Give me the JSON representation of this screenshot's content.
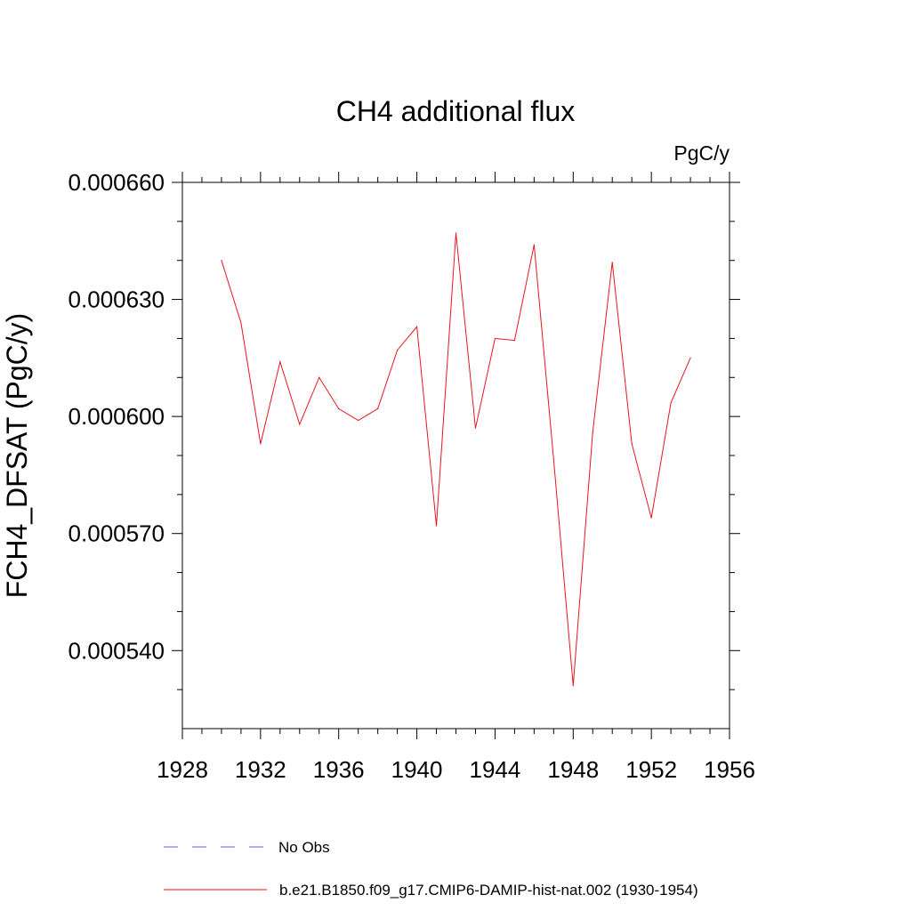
{
  "chart_data": {
    "type": "line",
    "title": "CH4 additional flux",
    "units_label": "PgC/y",
    "ylabel": "FCH4_DFSAT  (PgC/y)",
    "xlabel": "",
    "xlim": [
      1928,
      1956
    ],
    "ylim": [
      0.00052,
      0.00066
    ],
    "x_ticks": [
      1928,
      1932,
      1936,
      1940,
      1944,
      1948,
      1952,
      1956
    ],
    "x_tick_labels": [
      "1928",
      "1932",
      "1936",
      "1940",
      "1944",
      "1948",
      "1952",
      "1956"
    ],
    "y_ticks": [
      0.00054,
      0.00057,
      0.0006,
      0.00063,
      0.00066
    ],
    "y_tick_labels": [
      "0.000540",
      "0.000570",
      "0.000600",
      "0.000630",
      "0.000660"
    ],
    "grid": false,
    "legend_position": "bottom",
    "series": [
      {
        "name": "b.e21.B1850.f09_g17.CMIP6-DAMIP-hist-nat.002 (1930-1954)",
        "color": "#e8141e",
        "style": "solid",
        "x": [
          1930,
          1931,
          1932,
          1933,
          1934,
          1935,
          1936,
          1937,
          1938,
          1939,
          1940,
          1941,
          1942,
          1943,
          1944,
          1945,
          1946,
          1947,
          1948,
          1949,
          1950,
          1951,
          1952,
          1953,
          1954
        ],
        "y": [
          0.00064,
          0.000624,
          0.000593,
          0.000614,
          0.000598,
          0.00061,
          0.000602,
          0.000599,
          0.000602,
          0.000617,
          0.000623,
          0.000572,
          0.000647,
          0.000597,
          0.00062,
          0.0006195,
          0.000644,
          0.000589,
          0.000531,
          0.000596,
          0.0006395,
          0.000593,
          0.000574,
          0.0006035,
          0.000615
        ]
      }
    ],
    "legend": [
      {
        "label": "No Obs",
        "color": "#6666cc",
        "style": "dashed"
      },
      {
        "label": "b.e21.B1850.f09_g17.CMIP6-DAMIP-hist-nat.002 (1930-1954)",
        "color": "#e8141e",
        "style": "solid"
      }
    ]
  }
}
